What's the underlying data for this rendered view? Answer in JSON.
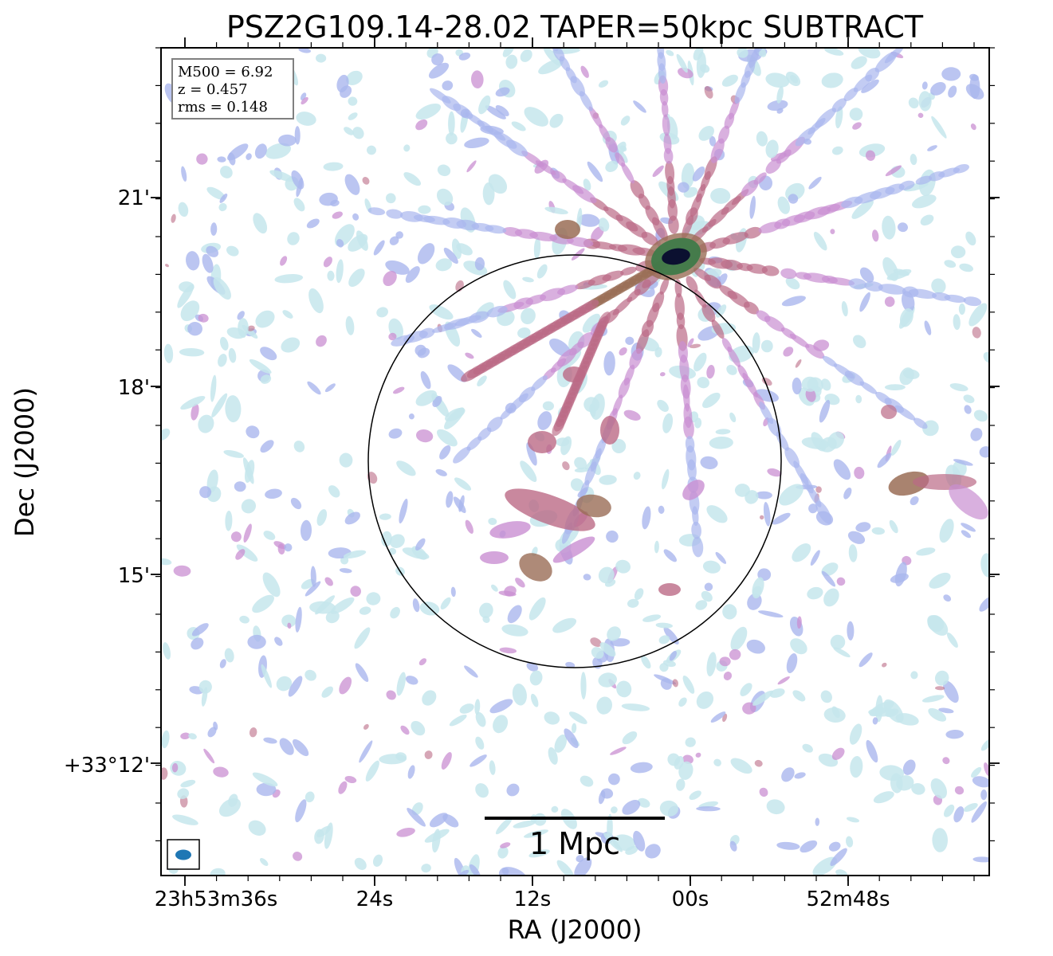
{
  "title": "PSZ2G109.14-28.02 TAPER=50kpc SUBTRACT",
  "info_box": {
    "mass": "M500 = 6.92",
    "redshift": "z = 0.457",
    "rms": "rms = 0.148"
  },
  "scale_bar_label": "1 Mpc",
  "x_axis": {
    "label": "RA (J2000)",
    "ticks": [
      "23h53m36s",
      "24s",
      "12s",
      "00s",
      "52m48s"
    ]
  },
  "y_axis": {
    "label": "Dec (J2000)",
    "ticks": [
      "21'",
      "18'",
      "15'",
      "+33°12'"
    ]
  },
  "colors": {
    "faint": "#c6e6ec",
    "low": "#aab6ee",
    "mid": "#c98fd2",
    "high": "#bb6a86",
    "higher": "#9a6d56",
    "peak": "#3f7a49",
    "core": "#0b1030",
    "beam": "#1f77b4"
  }
}
